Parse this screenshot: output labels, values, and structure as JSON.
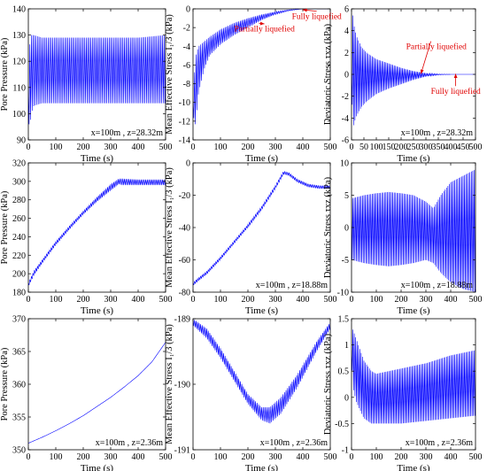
{
  "chart_data": [
    {
      "type": "line",
      "ylabel": "Pore Pressure (kPa)",
      "xlabel": "Time (s)",
      "annotation": "x=100m , z=28.32m",
      "xlim": [
        0,
        500
      ],
      "ylim": [
        90,
        140
      ],
      "xticks": [
        "0",
        "100",
        "200",
        "300",
        "400",
        "500"
      ],
      "yticks": [
        "90",
        "100",
        "110",
        "120",
        "130",
        "140"
      ],
      "series": [
        {
          "kind": "oscillation",
          "color": "#0000ff",
          "env_x": [
            0,
            2,
            5,
            10,
            20,
            50,
            100,
            200,
            300,
            400,
            500
          ],
          "upper": [
            110,
            118,
            126,
            130,
            130,
            129,
            129,
            129,
            129,
            129,
            130
          ],
          "lower": [
            110,
            97,
            93,
            100,
            103,
            104,
            104,
            104,
            104,
            104,
            104
          ],
          "cycles": 90
        }
      ],
      "annotations": []
    },
    {
      "type": "line",
      "ylabel": "Mean Effective Stress I₁/3 (kPa)",
      "xlabel": "Time (s)",
      "annotation": "",
      "xlim": [
        0,
        500
      ],
      "ylim": [
        -14,
        0
      ],
      "xticks": [
        "0",
        "100",
        "200",
        "300",
        "400",
        "500"
      ],
      "yticks": [
        "-14",
        "-12",
        "-10",
        "-8",
        "-6",
        "-4",
        "-2",
        "0"
      ],
      "series": [
        {
          "kind": "oscillation",
          "color": "#0000ff",
          "env_x": [
            0,
            5,
            10,
            20,
            40,
            60,
            100,
            150,
            200,
            250,
            300,
            350,
            400,
            500
          ],
          "upper": [
            -10,
            -7,
            -5,
            -4,
            -3.5,
            -3,
            -2.2,
            -1.5,
            -1.0,
            -0.6,
            -0.3,
            -0.1,
            0,
            0
          ],
          "lower": [
            -10,
            -13,
            -12,
            -9,
            -6.5,
            -5,
            -3.8,
            -2.8,
            -2.0,
            -1.2,
            -0.6,
            -0.2,
            0,
            0
          ],
          "cycles": 90
        }
      ],
      "annotations": [
        {
          "text": "Partially liquefied",
          "x": 260,
          "y": -1.6,
          "tx": 150,
          "ty": -2.4
        },
        {
          "text": "Fully liquefied",
          "x": 400,
          "y": -0.1,
          "tx": 360,
          "ty": -1.1
        }
      ]
    },
    {
      "type": "line",
      "ylabel": "Deviatoric Stress τxz (kPa)",
      "xlabel": "Time (s)",
      "annotation": "x=100m , z=28.32m",
      "xlim": [
        0,
        500
      ],
      "ylim": [
        -6,
        6
      ],
      "xticks": [
        "0",
        "50",
        "100",
        "150",
        "200",
        "250",
        "300",
        "350",
        "400",
        "450",
        "500"
      ],
      "yticks": [
        "-6",
        "-4",
        "-2",
        "0",
        "2",
        "4",
        "6"
      ],
      "series": [
        {
          "kind": "oscillation",
          "color": "#0000ff",
          "env_x": [
            0,
            5,
            10,
            20,
            40,
            60,
            100,
            150,
            200,
            250,
            300,
            350,
            400,
            500
          ],
          "upper": [
            0,
            5.5,
            4.5,
            3.5,
            2.5,
            2.0,
            1.4,
            1.0,
            0.6,
            0.3,
            0.12,
            0.03,
            0,
            0
          ],
          "lower": [
            0,
            -5,
            -4.5,
            -3.8,
            -3.0,
            -2.5,
            -1.8,
            -1.3,
            -0.9,
            -0.5,
            -0.2,
            -0.05,
            0,
            0
          ],
          "cycles": 90
        }
      ],
      "annotations": [
        {
          "text": "Partially liquefied",
          "x": 280,
          "y": 0.05,
          "tx": 220,
          "ty": 2.3
        },
        {
          "text": "Fully liquefied",
          "x": 420,
          "y": 0.05,
          "tx": 320,
          "ty": -1.8
        }
      ]
    },
    {
      "type": "line",
      "ylabel": "Pore Pressure (kPa)",
      "xlabel": "Time (s)",
      "annotation": "",
      "xlim": [
        0,
        500
      ],
      "ylim": [
        180,
        320
      ],
      "xticks": [
        "0",
        "100",
        "200",
        "300",
        "400",
        "500"
      ],
      "yticks": [
        "180",
        "200",
        "220",
        "240",
        "260",
        "280",
        "300",
        "320"
      ],
      "series": [
        {
          "kind": "oscillation",
          "color": "#0000ff",
          "env_x": [
            0,
            20,
            50,
            100,
            150,
            200,
            250,
            300,
            330,
            340,
            400,
            500
          ],
          "upper": [
            190,
            203,
            215,
            235,
            252,
            268,
            283,
            297,
            303,
            303,
            302,
            302
          ],
          "lower": [
            186,
            198,
            211,
            231,
            248,
            264,
            278,
            290,
            297,
            296,
            296,
            296
          ],
          "cycles": 90
        }
      ],
      "annotations": []
    },
    {
      "type": "line",
      "ylabel": "Mean Effective Stress I₁/3 (kPa)",
      "xlabel": "Time (s)",
      "annotation": "x=100m , z=18.88m",
      "xlim": [
        0,
        500
      ],
      "ylim": [
        -80,
        0
      ],
      "xticks": [
        "0",
        "100",
        "200",
        "300",
        "400",
        "500"
      ],
      "yticks": [
        "-80",
        "-60",
        "-40",
        "-20",
        "0"
      ],
      "series": [
        {
          "kind": "oscillation",
          "color": "#0000ff",
          "env_x": [
            0,
            20,
            50,
            100,
            150,
            200,
            250,
            300,
            330,
            350,
            380,
            420,
            460,
            500
          ],
          "upper": [
            -74,
            -71,
            -67,
            -58,
            -48,
            -38,
            -27,
            -14,
            -5,
            -6,
            -10,
            -13,
            -14,
            -14
          ],
          "lower": [
            -76,
            -73,
            -69,
            -60,
            -50,
            -40,
            -29,
            -16,
            -7,
            -8,
            -12,
            -15,
            -16,
            -16
          ],
          "cycles": 90
        }
      ],
      "annotations": []
    },
    {
      "type": "line",
      "ylabel": "Deviatoric Stress τxz (kPa)",
      "xlabel": "Time (s)",
      "annotation": "x=100m , z=18.88m",
      "xlim": [
        0,
        500
      ],
      "ylim": [
        -10,
        10
      ],
      "xticks": [
        "0",
        "100",
        "200",
        "300",
        "400",
        "500"
      ],
      "yticks": [
        "-10",
        "-5",
        "0",
        "5",
        "10"
      ],
      "series": [
        {
          "kind": "oscillation",
          "color": "#0000ff",
          "env_x": [
            0,
            50,
            100,
            150,
            200,
            250,
            300,
            330,
            360,
            400,
            450,
            500
          ],
          "upper": [
            4.5,
            5,
            5.3,
            5.5,
            5.3,
            5,
            4,
            3,
            5,
            7,
            8,
            9
          ],
          "lower": [
            -5,
            -5.5,
            -5.8,
            -6,
            -5.8,
            -5.5,
            -5,
            -5.5,
            -7,
            -8.5,
            -9.5,
            -10
          ],
          "cycles": 90
        }
      ],
      "annotations": []
    },
    {
      "type": "line",
      "ylabel": "Pore Pressure (kPa)",
      "xlabel": "Time (s)",
      "annotation": "x=100m , z=2.36m",
      "xlim": [
        0,
        500
      ],
      "ylim": [
        350,
        370
      ],
      "xticks": [
        "0",
        "100",
        "200",
        "300",
        "400",
        "500"
      ],
      "yticks": [
        "350",
        "355",
        "360",
        "365",
        "370"
      ],
      "series": [
        {
          "kind": "line",
          "color": "#0000ff",
          "x": [
            0,
            50,
            100,
            150,
            200,
            250,
            300,
            350,
            400,
            450,
            500
          ],
          "y": [
            351,
            351.9,
            352.9,
            354.0,
            355.2,
            356.6,
            358.0,
            359.6,
            361.3,
            363.4,
            366.4
          ]
        }
      ],
      "annotations": []
    },
    {
      "type": "line",
      "ylabel": "Mean Effective Stress I₁/3 (kPa)",
      "xlabel": "Time (s)",
      "annotation": "x=100m , z=2.36m",
      "xlim": [
        0,
        500
      ],
      "ylim": [
        -191,
        -189
      ],
      "xticks": [
        "0",
        "100",
        "200",
        "300",
        "400",
        "500"
      ],
      "yticks": [
        "-191",
        "-190",
        "-189"
      ],
      "series": [
        {
          "kind": "oscillation",
          "color": "#0000ff",
          "env_x": [
            0,
            50,
            100,
            150,
            200,
            250,
            280,
            320,
            380,
            450,
            500
          ],
          "upper": [
            -189.0,
            -189.15,
            -189.45,
            -189.8,
            -190.15,
            -190.35,
            -190.35,
            -190.2,
            -189.85,
            -189.35,
            -189.05
          ],
          "lower": [
            -189.1,
            -189.3,
            -189.6,
            -189.95,
            -190.3,
            -190.55,
            -190.6,
            -190.45,
            -190.05,
            -189.5,
            -189.15
          ],
          "cycles": 90
        }
      ],
      "annotations": []
    },
    {
      "type": "line",
      "ylabel": "Deviatoric Stress τxz (kPa)",
      "xlabel": "Time (s)",
      "annotation": "x=100m , z=2.36m",
      "xlim": [
        0,
        500
      ],
      "ylim": [
        -1,
        1.5
      ],
      "xticks": [
        "0",
        "100",
        "200",
        "300",
        "400",
        "500"
      ],
      "yticks": [
        "-1",
        "-0.5",
        "0",
        "0.5",
        "1",
        "1.5"
      ],
      "series": [
        {
          "kind": "oscillation",
          "color": "#0000ff",
          "env_x": [
            0,
            5,
            20,
            50,
            80,
            100,
            200,
            300,
            400,
            500
          ],
          "upper": [
            0.9,
            1.3,
            1.1,
            0.7,
            0.5,
            0.45,
            0.55,
            0.65,
            0.8,
            0.9
          ],
          "lower": [
            0.9,
            0.2,
            -0.1,
            -0.4,
            -0.5,
            -0.5,
            -0.5,
            -0.45,
            -0.4,
            -0.35
          ],
          "cycles": 90
        }
      ],
      "annotations": []
    }
  ]
}
